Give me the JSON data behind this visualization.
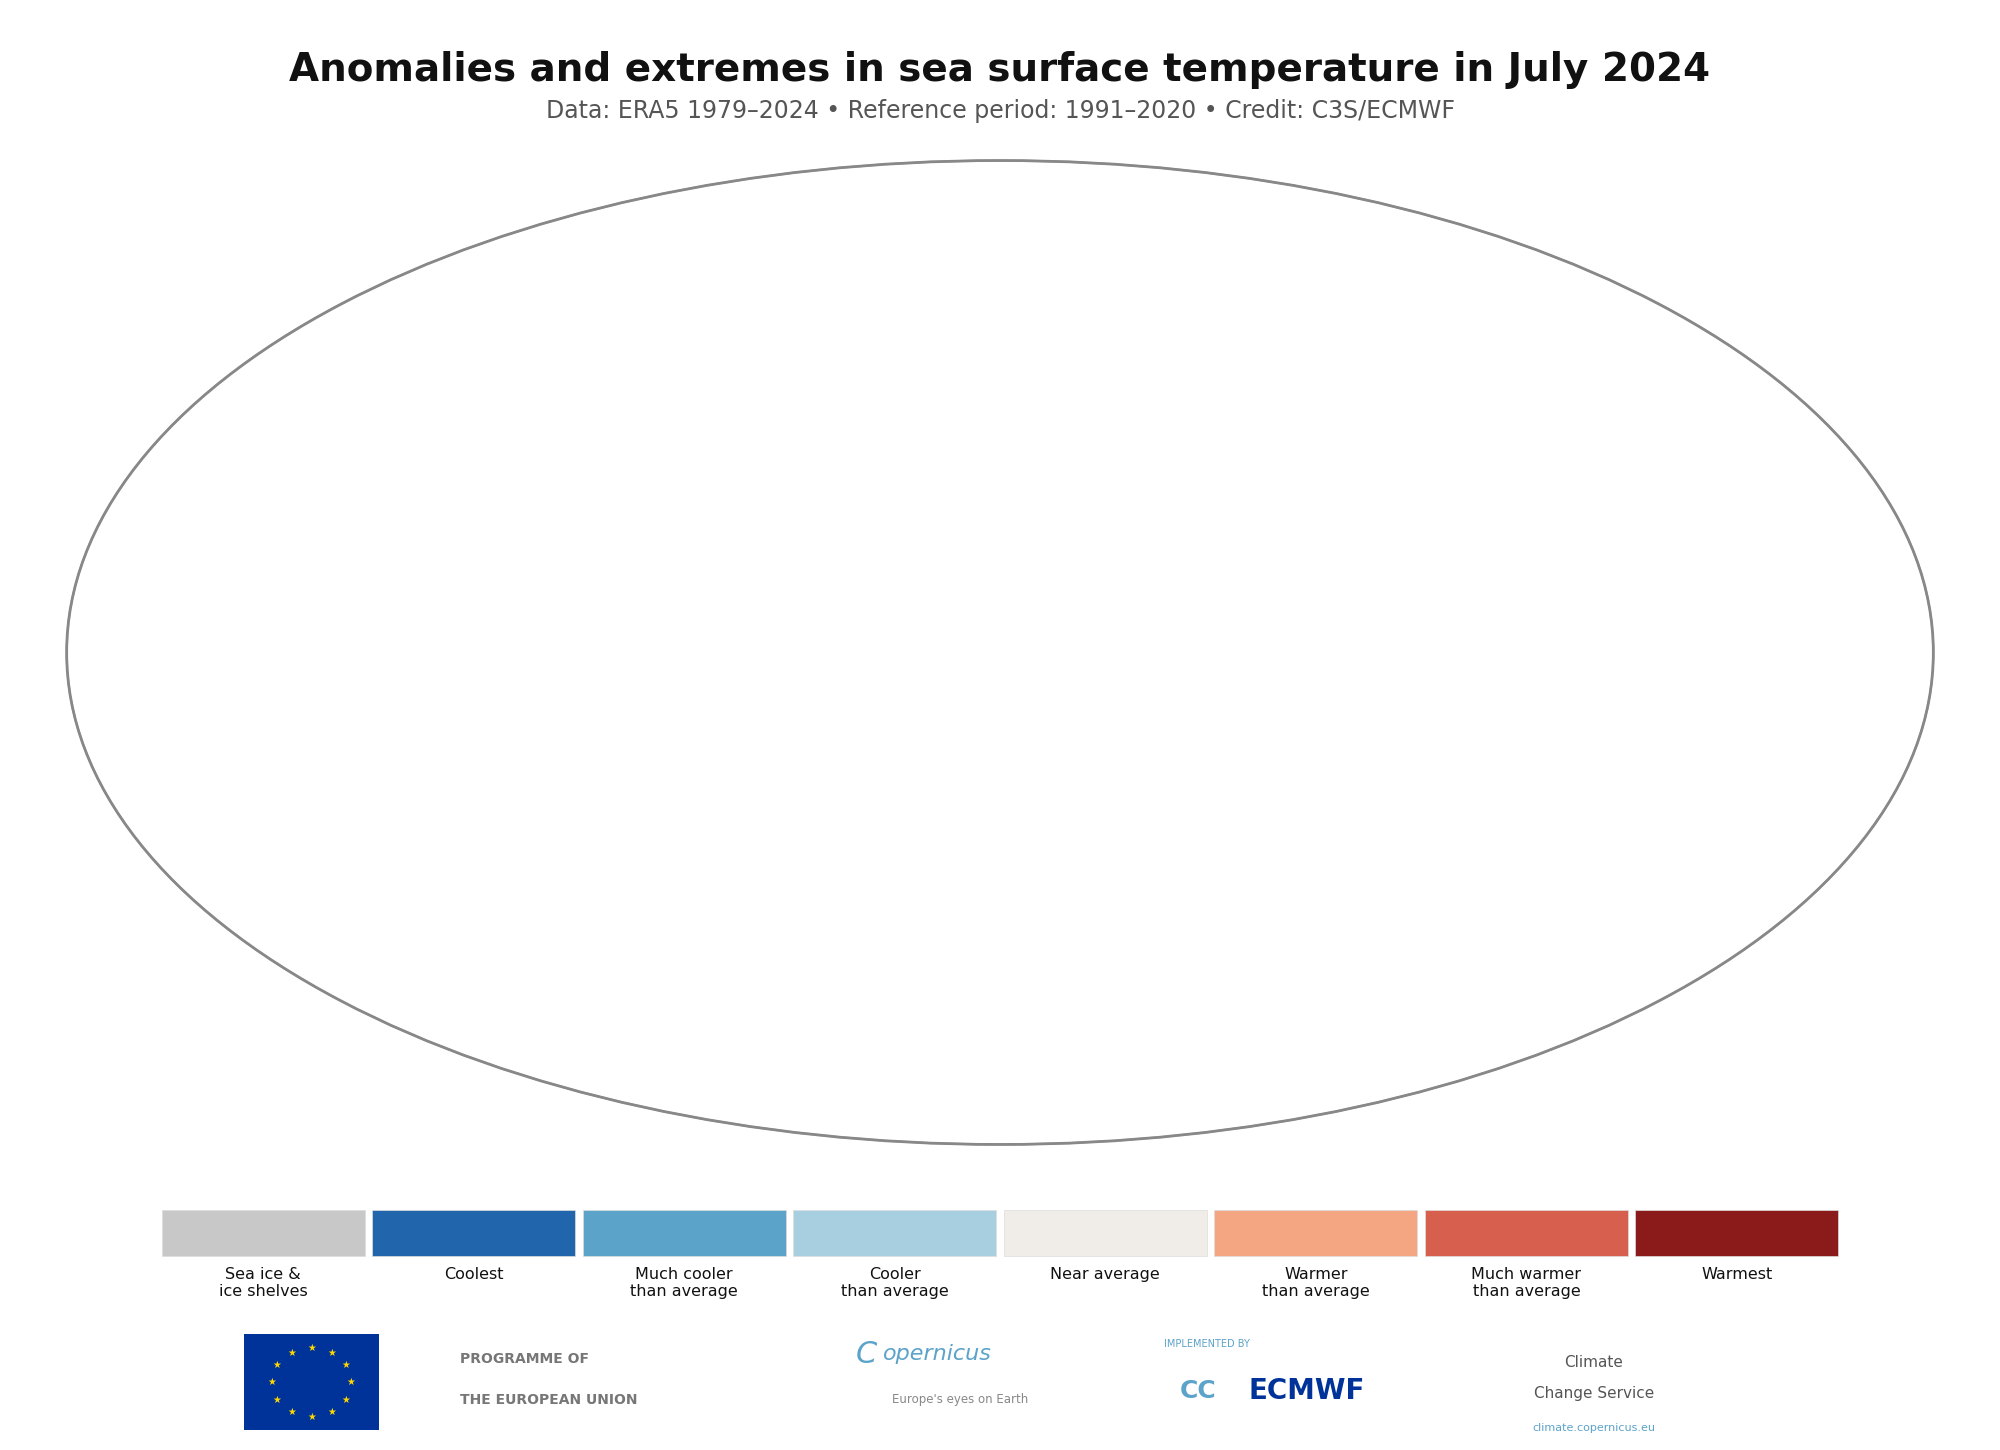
{
  "title": "Anomalies and extremes in sea surface temperature in July 2024",
  "subtitle": "Data: ERA5 1979–2024 • Reference period: 1991–2020 • Credit: C3S/ECMWF",
  "title_fontsize": 28,
  "subtitle_fontsize": 17,
  "background_color": "#ffffff",
  "legend_items": [
    {
      "label": "Sea ice &\nice shelves",
      "color": "#c8c8c8"
    },
    {
      "label": "Coolest",
      "color": "#2166ac"
    },
    {
      "label": "Much cooler\nthan average",
      "color": "#5ba3c9"
    },
    {
      "label": "Cooler\nthan average",
      "color": "#a8cfe0"
    },
    {
      "label": "Near average",
      "color": "#f0ece8"
    },
    {
      "label": "Warmer\nthan average",
      "color": "#f4a582"
    },
    {
      "label": "Much warmer\nthan average",
      "color": "#d6604d"
    },
    {
      "label": "Warmest",
      "color": "#8b1a1a"
    }
  ],
  "land_color": "#888888",
  "pole_color": "#c0c0c0"
}
